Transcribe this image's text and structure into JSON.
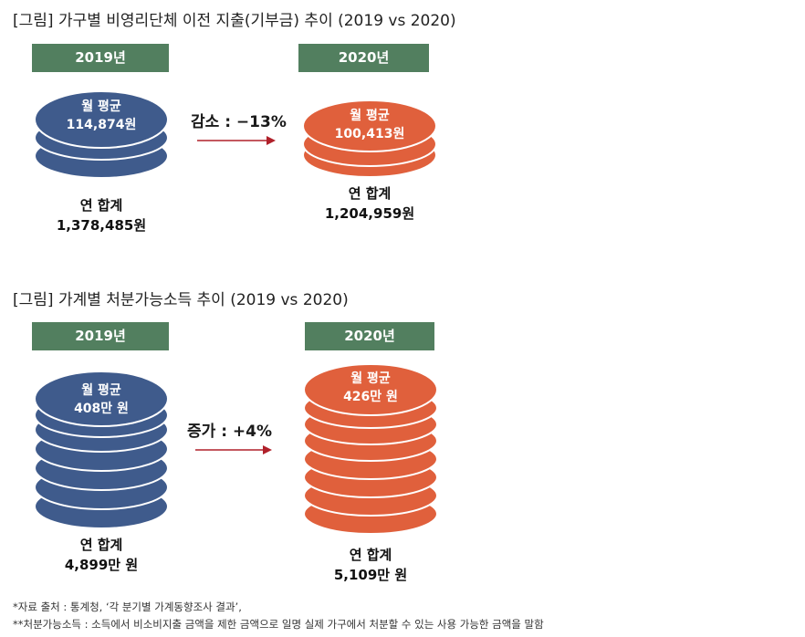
{
  "colors": {
    "tag": "#527f5f",
    "blue_fill": "#3f5b8c",
    "orange_fill": "#e0603c",
    "coin_edge": "#ffffff",
    "arrow": "#b0202a"
  },
  "figure1": {
    "title": "[그림] 가구별 비영리단체 이전 지출(기부금) 추이 (2019 vs 2020)",
    "left": {
      "year": "2019년",
      "coin_line1": "월 평균",
      "coin_line2": "114,874원",
      "total_line1": "연 합계",
      "total_line2": "1,378,485원"
    },
    "change_label": "감소 : −13%",
    "right": {
      "year": "2020년",
      "coin_line1": "월 평균",
      "coin_line2": "100,413원",
      "total_line1": "연 합계",
      "total_line2": "1,204,959원"
    }
  },
  "figure2": {
    "title": "[그림] 가계별 처분가능소득 추이 (2019 vs 2020)",
    "left": {
      "year": "2019년",
      "coin_line1": "월 평균",
      "coin_line2": "408만 원",
      "total_line1": "연 합계",
      "total_line2": "4,899만 원"
    },
    "change_label": "증가 : +4%",
    "right": {
      "year": "2020년",
      "coin_line1": "월 평균",
      "coin_line2": "426만 원",
      "total_line1": "연 합계",
      "total_line2": "5,109만 원"
    }
  },
  "notes": {
    "source": "*자료 출처 : 통계청, ‘각 분기별 가계동향조사 결과’,",
    "definition": "**처분가능소득 : 소득에서 비소비지출 금액을 제한 금액으로 일명 실제 가구에서 처분할 수 있는 사용 가능한 금액을 말함"
  }
}
